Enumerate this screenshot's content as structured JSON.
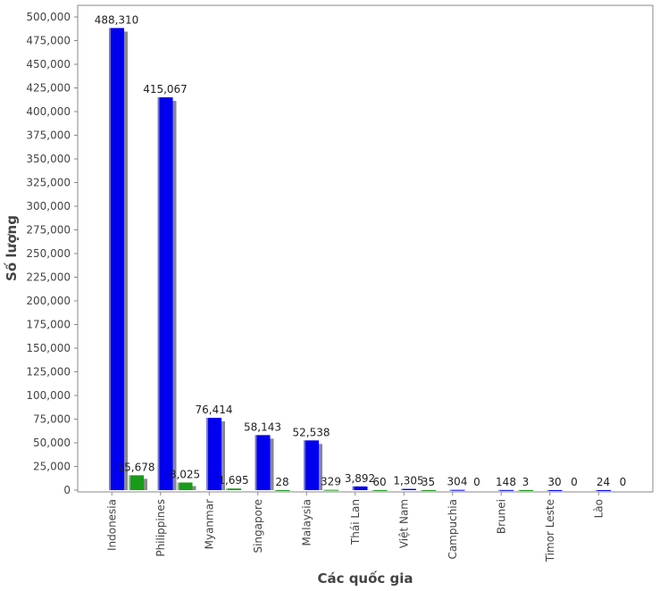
{
  "chart_data": {
    "type": "bar",
    "xlabel": "Các quốc gia",
    "ylabel": "Số lượng",
    "ylim": [
      0,
      500000
    ],
    "y_tick_step": 25000,
    "grid": false,
    "categories": [
      "Indonesia",
      "Philippines",
      "Myanmar",
      "Singapore",
      "Malaysia",
      "Thái Lan",
      "Việt Nam",
      "Campuchia",
      "Brunei",
      "Timor Leste",
      "Lào"
    ],
    "series": [
      {
        "values": [
          488310,
          415067,
          76414,
          58143,
          52538,
          3892,
          1305,
          304,
          148,
          30,
          24
        ]
      },
      {
        "values": [
          15678,
          8025,
          1695,
          28,
          329,
          60,
          35,
          0,
          3,
          0,
          0
        ]
      }
    ],
    "value_labels": [
      [
        "488,310",
        "415,067",
        "76,414",
        "58,143",
        "52,538",
        "3,892",
        "1,305",
        "304",
        "148",
        "30",
        "24"
      ],
      [
        "15,678",
        "8,025",
        "1,695",
        "28",
        "329",
        "60",
        "35",
        "0",
        "3",
        "0",
        "0"
      ]
    ],
    "y_tick_labels": [
      "0",
      "25,000",
      "50,000",
      "75,000",
      "100,000",
      "125,000",
      "150,000",
      "175,000",
      "200,000",
      "225,000",
      "250,000",
      "275,000",
      "300,000",
      "325,000",
      "350,000",
      "375,000",
      "400,000",
      "425,000",
      "450,000",
      "475,000",
      "500,000"
    ],
    "colors": {
      "series_0": "#0000ee",
      "series_1": "#1a9a1a",
      "shadow": "#8a8a8a",
      "axis": "#888888",
      "frame": "#888888"
    }
  }
}
